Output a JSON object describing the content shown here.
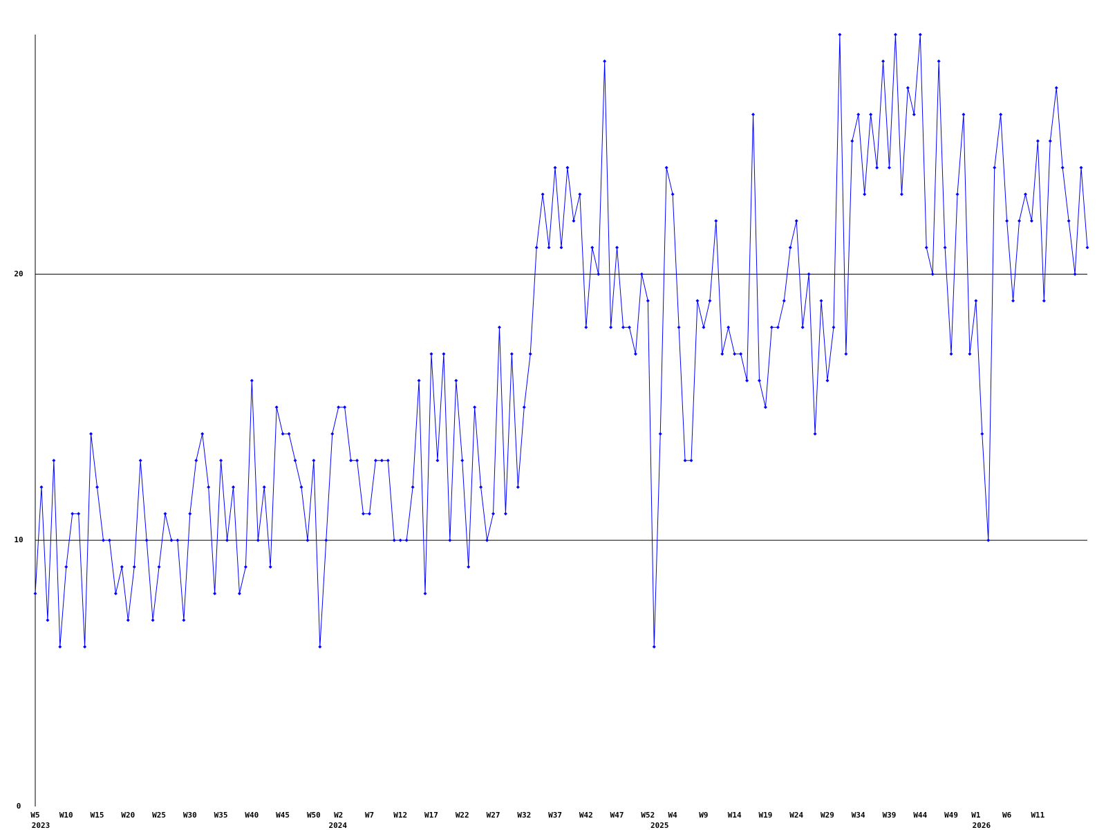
{
  "chart_data": {
    "type": "line",
    "categories": [
      "W5",
      null,
      null,
      null,
      null,
      "W10",
      null,
      null,
      null,
      null,
      "W15",
      null,
      null,
      null,
      null,
      "W20",
      null,
      null,
      null,
      null,
      "W25",
      null,
      null,
      null,
      null,
      "W30",
      null,
      null,
      null,
      null,
      "W35",
      null,
      null,
      null,
      null,
      "W40",
      null,
      null,
      null,
      null,
      "W45",
      null,
      null,
      null,
      null,
      "W50",
      null,
      null,
      null,
      "W2",
      null,
      null,
      null,
      null,
      "W7",
      null,
      null,
      null,
      null,
      "W12",
      null,
      null,
      null,
      null,
      "W17",
      null,
      null,
      null,
      null,
      "W22",
      null,
      null,
      null,
      null,
      "W27",
      null,
      null,
      null,
      null,
      "W32",
      null,
      null,
      null,
      null,
      "W37",
      null,
      null,
      null,
      null,
      "W42",
      null,
      null,
      null,
      null,
      "W47",
      null,
      null,
      null,
      null,
      "W52",
      null,
      null,
      null,
      "W4",
      null,
      null,
      null,
      null,
      "W9",
      null,
      null,
      null,
      null,
      "W14",
      null,
      null,
      null,
      null,
      "W19",
      null,
      null,
      null,
      null,
      "W24",
      null,
      null,
      null,
      null,
      "W29",
      null,
      null,
      null,
      null,
      "W34",
      null,
      null,
      null,
      null,
      "W39",
      null,
      null,
      null,
      null,
      "W44",
      null,
      null,
      null,
      null,
      "W49",
      null,
      null,
      null,
      "W1",
      null,
      null,
      null,
      null,
      "W6",
      null,
      null,
      null,
      null,
      "W11",
      null,
      null,
      null,
      null,
      null,
      null,
      null,
      null
    ],
    "category_years": [
      "2023",
      null,
      null,
      null,
      null,
      null,
      null,
      null,
      null,
      null,
      null,
      null,
      null,
      null,
      null,
      null,
      null,
      null,
      null,
      null,
      null,
      null,
      null,
      null,
      null,
      null,
      null,
      null,
      null,
      null,
      null,
      null,
      null,
      null,
      null,
      null,
      null,
      null,
      null,
      null,
      null,
      null,
      null,
      null,
      null,
      null,
      null,
      null,
      "2024",
      null,
      null,
      null,
      null,
      null,
      null,
      null,
      null,
      null,
      null,
      null,
      null,
      null,
      null,
      null,
      null,
      null,
      null,
      null,
      null,
      null,
      null,
      null,
      null,
      null,
      null,
      null,
      null,
      null,
      null,
      null,
      null,
      null,
      null,
      null,
      null,
      null,
      null,
      null,
      null,
      null,
      null,
      null,
      null,
      null,
      null,
      null,
      null,
      null,
      null,
      null,
      "2025",
      null,
      null,
      null,
      null,
      null,
      null,
      null,
      null,
      null,
      null,
      null,
      null,
      null,
      null,
      null,
      null,
      null,
      null,
      null,
      null,
      null,
      null,
      null,
      null,
      null,
      null,
      null,
      null,
      null,
      null,
      null,
      null,
      null,
      null,
      null,
      null,
      null,
      null,
      null,
      null,
      null,
      null,
      null,
      null,
      null,
      null,
      null,
      null,
      null,
      null,
      null,
      "2026",
      null,
      null,
      null,
      null,
      null,
      null,
      null,
      null,
      null,
      null,
      null,
      null,
      null,
      null,
      null,
      null,
      null,
      null
    ],
    "series": [
      {
        "color": "#0000ff",
        "values": [
          8,
          12,
          7,
          13,
          6,
          9,
          11,
          11,
          6,
          14,
          12,
          10,
          10,
          8,
          9,
          7,
          9,
          13,
          10,
          7,
          9,
          11,
          10,
          10,
          7,
          11,
          13,
          14,
          12,
          8,
          13,
          10,
          12,
          8,
          9,
          16,
          10,
          12,
          9,
          15,
          14,
          14,
          13,
          12,
          10,
          13,
          6,
          10,
          14,
          15,
          15,
          13,
          13,
          11,
          11,
          13,
          13,
          13,
          10,
          10,
          10,
          12,
          16,
          8,
          17,
          13,
          17,
          10,
          16,
          13,
          9,
          15,
          12,
          10,
          11,
          18,
          11,
          17,
          12,
          15,
          17,
          21,
          23,
          21,
          24,
          21,
          24,
          22,
          23,
          18,
          21,
          20,
          28,
          18,
          21,
          18,
          18,
          17,
          20,
          19,
          6,
          14,
          24,
          23,
          18,
          13,
          13,
          19,
          18,
          19,
          22,
          17,
          18,
          17,
          17,
          16,
          26,
          16,
          15,
          18,
          18,
          19,
          21,
          22,
          18,
          20,
          14,
          19,
          16,
          18,
          29,
          17,
          25,
          26,
          23,
          26,
          24,
          28,
          24,
          29,
          23,
          27,
          26,
          29,
          21,
          20,
          28,
          21,
          17,
          23,
          26,
          17,
          19,
          14,
          10,
          24,
          26,
          22,
          19,
          22,
          23,
          22,
          25,
          19,
          25,
          27,
          24,
          22,
          20,
          24,
          21
        ]
      }
    ],
    "ylim": [
      0,
      29
    ],
    "yticks": [
      0,
      10,
      20
    ],
    "grid": true
  }
}
